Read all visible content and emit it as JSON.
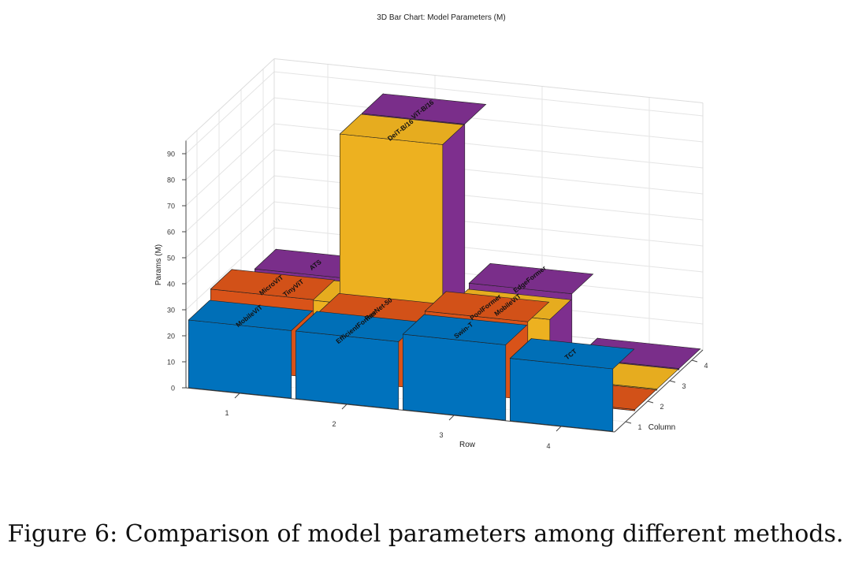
{
  "figure": {
    "caption": "Figure 6: Comparison of model parameters among different methods."
  },
  "chart_data": {
    "type": "bar3d",
    "title": "3D Bar Chart: Model Parameters (M)",
    "xlabel": "Row",
    "ylabel": "Column",
    "zlabel": "Params (M)",
    "zlim": [
      0,
      95
    ],
    "zticks": [
      0,
      10,
      20,
      30,
      40,
      50,
      60,
      70,
      80,
      90
    ],
    "rows": [
      "1",
      "2",
      "3",
      "4"
    ],
    "columns": [
      "1",
      "2",
      "3",
      "4"
    ],
    "series_colors": [
      "#0072BD",
      "#D95319",
      "#EDB120",
      "#7E2F8E"
    ],
    "bars": [
      {
        "row": 1,
        "col": 1,
        "label": "MobileViT",
        "value": 26
      },
      {
        "row": 2,
        "col": 1,
        "label": "EfficientFormer",
        "value": 26
      },
      {
        "row": 3,
        "col": 1,
        "label": "Swin-T",
        "value": 29
      },
      {
        "row": 4,
        "col": 1,
        "label": "TCT",
        "value": 24
      },
      {
        "row": 1,
        "col": 2,
        "label": "MicroViT",
        "value": 30
      },
      {
        "row": 2,
        "col": 2,
        "label": "ResNet-50",
        "value": 25
      },
      {
        "row": 3,
        "col": 2,
        "label": "PoolFormer",
        "value": 30
      },
      {
        "row": 4,
        "col": 2,
        "label": "",
        "value": 0.5
      },
      {
        "row": 1,
        "col": 3,
        "label": "TinyViT",
        "value": 21
      },
      {
        "row": 2,
        "col": 3,
        "label": "DeiT-B/16",
        "value": 86
      },
      {
        "row": 3,
        "col": 3,
        "label": "MobileViT",
        "value": 23
      },
      {
        "row": 4,
        "col": 3,
        "label": "",
        "value": 0.5
      },
      {
        "row": 1,
        "col": 4,
        "label": "ATS",
        "value": 22
      },
      {
        "row": 2,
        "col": 4,
        "label": "ViT-B/16",
        "value": 86
      },
      {
        "row": 3,
        "col": 4,
        "label": "EdgeFormer",
        "value": 25
      },
      {
        "row": 4,
        "col": 4,
        "label": "",
        "value": 0.5
      }
    ]
  }
}
